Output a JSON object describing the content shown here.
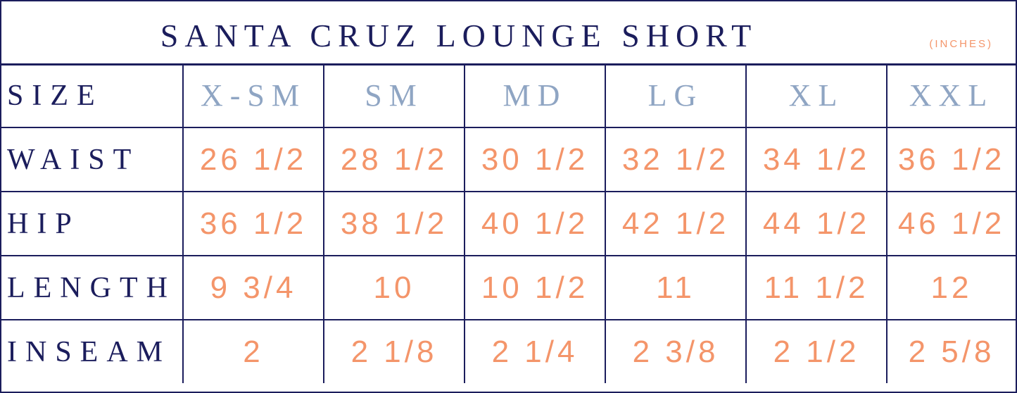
{
  "title": "SANTA CRUZ LOUNGE SHORT",
  "units": "(INCHES)",
  "colors": {
    "navy": "#1b1d5c",
    "peach": "#f4956a",
    "slate": "#8fa5c3"
  },
  "header": {
    "label": "SIZE",
    "sizes": [
      "X-SM",
      "SM",
      "MD",
      "LG",
      "XL",
      "XXL"
    ]
  },
  "rows": [
    {
      "label": "WAIST",
      "values": [
        "26 1/2",
        "28 1/2",
        "30 1/2",
        "32 1/2",
        "34 1/2",
        "36 1/2"
      ]
    },
    {
      "label": "HIP",
      "values": [
        "36 1/2",
        "38 1/2",
        "40 1/2",
        "42 1/2",
        "44 1/2",
        "46 1/2"
      ]
    },
    {
      "label": "LENGTH",
      "values": [
        "9 3/4",
        "10",
        "10 1/2",
        "11",
        "11 1/2",
        "12"
      ]
    },
    {
      "label": "INSEAM",
      "values": [
        "2",
        "2 1/8",
        "2 1/4",
        "2 3/8",
        "2 1/2",
        "2 5/8"
      ]
    }
  ]
}
